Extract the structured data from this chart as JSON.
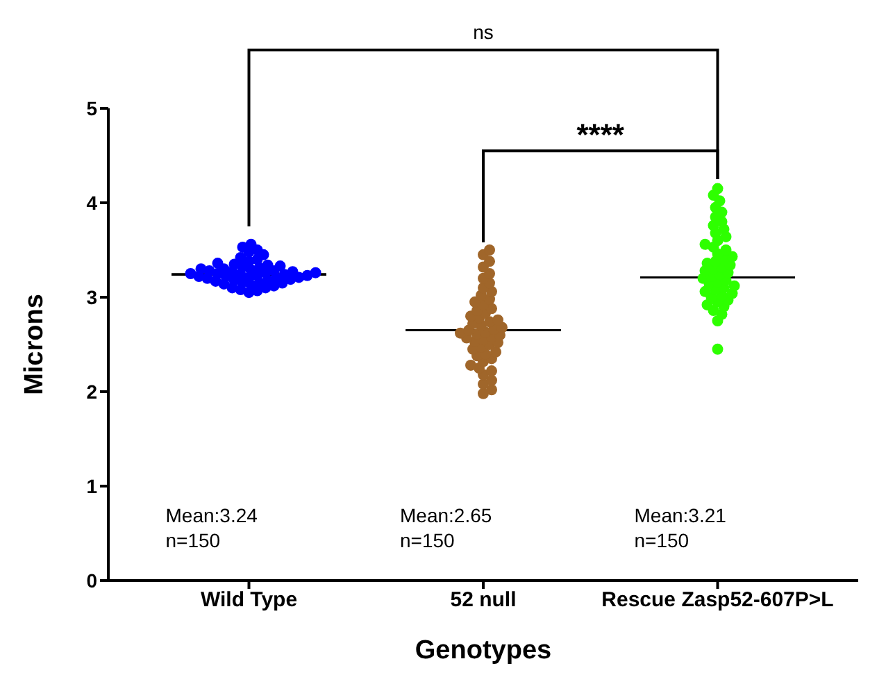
{
  "chart_data": {
    "type": "scatter",
    "categories": [
      "Wild Type",
      "52 null",
      "Rescue Zasp52-607P>L"
    ],
    "xlabel": "Genotypes",
    "ylabel": "Microns",
    "ylim": [
      0,
      5
    ],
    "yticks": [
      0,
      1,
      2,
      3,
      4,
      5
    ],
    "marker": "circle",
    "annotations": [
      "ns",
      "****",
      "Mean:3.24\nn=150",
      "Mean:2.65\nn=150",
      "Mean:3.21\nn=150"
    ],
    "series": [
      {
        "color": "#0000ff",
        "x": [
          "Wild Type",
          "Wild Type",
          "Wild Type",
          "Wild Type",
          "Wild Type",
          "Wild Type",
          "Wild Type",
          "Wild Type",
          "Wild Type",
          "Wild Type",
          "Wild Type",
          "Wild Type",
          "Wild Type",
          "Wild Type",
          "Wild Type",
          "Wild Type",
          "Wild Type",
          "Wild Type",
          "Wild Type",
          "Wild Type",
          "Wild Type",
          "Wild Type",
          "Wild Type",
          "Wild Type",
          "Wild Type",
          "Wild Type",
          "Wild Type",
          "Wild Type",
          "Wild Type",
          "Wild Type",
          "Wild Type",
          "Wild Type",
          "Wild Type",
          "Wild Type",
          "Wild Type",
          "Wild Type",
          "Wild Type",
          "Wild Type",
          "Wild Type",
          "Wild Type",
          "Wild Type",
          "Wild Type",
          "Wild Type",
          "Wild Type",
          "Wild Type",
          "Wild Type",
          "Wild Type",
          "Wild Type",
          "Wild Type",
          "Wild Type"
        ],
        "values": [
          3.05,
          3.07,
          3.08,
          3.1,
          3.1,
          3.12,
          3.13,
          3.14,
          3.15,
          3.15,
          3.16,
          3.17,
          3.18,
          3.18,
          3.19,
          3.2,
          3.2,
          3.21,
          3.21,
          3.22,
          3.22,
          3.23,
          3.23,
          3.24,
          3.24,
          3.25,
          3.25,
          3.26,
          3.26,
          3.27,
          3.27,
          3.28,
          3.28,
          3.29,
          3.3,
          3.3,
          3.31,
          3.32,
          3.33,
          3.34,
          3.35,
          3.36,
          3.38,
          3.4,
          3.42,
          3.45,
          3.48,
          3.5,
          3.53,
          3.56
        ]
      },
      {
        "color": "#a0662a",
        "x": [
          "52 null",
          "52 null",
          "52 null",
          "52 null",
          "52 null",
          "52 null",
          "52 null",
          "52 null",
          "52 null",
          "52 null",
          "52 null",
          "52 null",
          "52 null",
          "52 null",
          "52 null",
          "52 null",
          "52 null",
          "52 null",
          "52 null",
          "52 null",
          "52 null",
          "52 null",
          "52 null",
          "52 null",
          "52 null",
          "52 null",
          "52 null",
          "52 null",
          "52 null",
          "52 null",
          "52 null",
          "52 null",
          "52 null",
          "52 null",
          "52 null",
          "52 null",
          "52 null",
          "52 null",
          "52 null",
          "52 null",
          "52 null",
          "52 null",
          "52 null",
          "52 null",
          "52 null",
          "52 null",
          "52 null",
          "52 null",
          "52 null",
          "52 null"
        ],
        "values": [
          1.98,
          2.02,
          2.08,
          2.12,
          2.18,
          2.22,
          2.25,
          2.28,
          2.32,
          2.35,
          2.38,
          2.4,
          2.42,
          2.45,
          2.47,
          2.5,
          2.52,
          2.53,
          2.55,
          2.57,
          2.58,
          2.6,
          2.61,
          2.62,
          2.63,
          2.65,
          2.66,
          2.68,
          2.7,
          2.72,
          2.74,
          2.76,
          2.78,
          2.8,
          2.83,
          2.86,
          2.88,
          2.92,
          2.95,
          2.98,
          3.02,
          3.06,
          3.1,
          3.15,
          3.2,
          3.25,
          3.32,
          3.38,
          3.45,
          3.5
        ]
      },
      {
        "color": "#2eff00",
        "x": [
          "Rescue Zasp52-607P>L",
          "Rescue Zasp52-607P>L",
          "Rescue Zasp52-607P>L",
          "Rescue Zasp52-607P>L",
          "Rescue Zasp52-607P>L",
          "Rescue Zasp52-607P>L",
          "Rescue Zasp52-607P>L",
          "Rescue Zasp52-607P>L",
          "Rescue Zasp52-607P>L",
          "Rescue Zasp52-607P>L",
          "Rescue Zasp52-607P>L",
          "Rescue Zasp52-607P>L",
          "Rescue Zasp52-607P>L",
          "Rescue Zasp52-607P>L",
          "Rescue Zasp52-607P>L",
          "Rescue Zasp52-607P>L",
          "Rescue Zasp52-607P>L",
          "Rescue Zasp52-607P>L",
          "Rescue Zasp52-607P>L",
          "Rescue Zasp52-607P>L",
          "Rescue Zasp52-607P>L",
          "Rescue Zasp52-607P>L",
          "Rescue Zasp52-607P>L",
          "Rescue Zasp52-607P>L",
          "Rescue Zasp52-607P>L",
          "Rescue Zasp52-607P>L",
          "Rescue Zasp52-607P>L",
          "Rescue Zasp52-607P>L",
          "Rescue Zasp52-607P>L",
          "Rescue Zasp52-607P>L",
          "Rescue Zasp52-607P>L",
          "Rescue Zasp52-607P>L",
          "Rescue Zasp52-607P>L",
          "Rescue Zasp52-607P>L",
          "Rescue Zasp52-607P>L",
          "Rescue Zasp52-607P>L",
          "Rescue Zasp52-607P>L",
          "Rescue Zasp52-607P>L",
          "Rescue Zasp52-607P>L",
          "Rescue Zasp52-607P>L",
          "Rescue Zasp52-607P>L",
          "Rescue Zasp52-607P>L",
          "Rescue Zasp52-607P>L",
          "Rescue Zasp52-607P>L",
          "Rescue Zasp52-607P>L",
          "Rescue Zasp52-607P>L"
        ],
        "values": [
          2.45,
          2.75,
          2.82,
          2.86,
          2.9,
          2.92,
          2.95,
          2.97,
          3.0,
          3.02,
          3.04,
          3.06,
          3.08,
          3.1,
          3.12,
          3.14,
          3.16,
          3.18,
          3.2,
          3.22,
          3.24,
          3.26,
          3.28,
          3.3,
          3.32,
          3.34,
          3.36,
          3.38,
          3.4,
          3.43,
          3.46,
          3.5,
          3.53,
          3.56,
          3.6,
          3.64,
          3.68,
          3.72,
          3.76,
          3.8,
          3.85,
          3.9,
          3.95,
          4.02,
          4.08,
          4.15
        ]
      },
      {
        "type": "box",
        "color": "#000000",
        "boxes": [
          {
            "low": 3.24,
            "q1": 3.24,
            "median": 3.24,
            "q3": 3.24,
            "high": 3.24
          },
          {
            "low": 2.65,
            "q1": 2.65,
            "median": 2.65,
            "q3": 2.65,
            "high": 2.65
          },
          {
            "low": 3.21,
            "q1": 3.21,
            "median": 3.21,
            "q3": 3.21,
            "high": 3.21
          }
        ]
      }
    ]
  }
}
